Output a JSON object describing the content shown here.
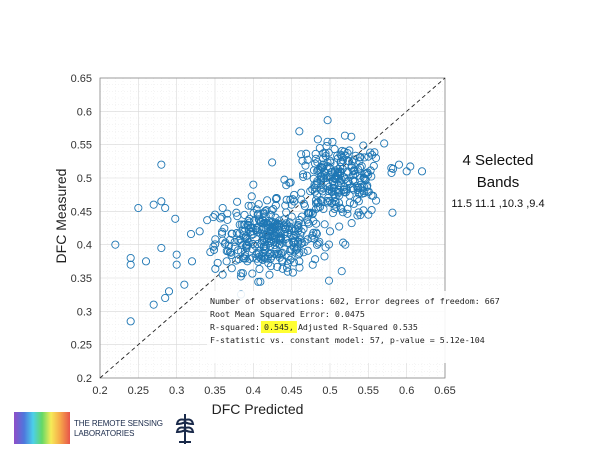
{
  "chart_data": {
    "type": "scatter",
    "xlabel": "DFC Predicted",
    "ylabel": "DFC Measured",
    "xlim": [
      0.2,
      0.65
    ],
    "ylim": [
      0.2,
      0.65
    ],
    "x_ticks": [
      "0.2",
      "0.25",
      "0.3",
      "0.35",
      "0.4",
      "0.45",
      "0.5",
      "0.55",
      "0.6",
      "0.65"
    ],
    "y_ticks": [
      "0.2",
      "0.25",
      "0.3",
      "0.35",
      "0.4",
      "0.45",
      "0.5",
      "0.55",
      "0.6",
      "0.65"
    ],
    "grid": true,
    "identity_line": true,
    "marker_color": "#1f77b4",
    "highlight_color": "#ffff33",
    "clusters": [
      {
        "center": [
          0.42,
          0.41
        ],
        "spread": [
          0.035,
          0.025
        ],
        "count": 330
      },
      {
        "center": [
          0.51,
          0.495
        ],
        "spread": [
          0.03,
          0.028
        ],
        "count": 260
      }
    ],
    "points": [
      [
        0.22,
        0.4
      ],
      [
        0.24,
        0.38
      ],
      [
        0.24,
        0.37
      ],
      [
        0.25,
        0.455
      ],
      [
        0.24,
        0.285
      ],
      [
        0.26,
        0.375
      ],
      [
        0.27,
        0.46
      ],
      [
        0.28,
        0.52
      ],
      [
        0.28,
        0.465
      ],
      [
        0.285,
        0.455
      ],
      [
        0.28,
        0.395
      ],
      [
        0.285,
        0.32
      ],
      [
        0.29,
        0.33
      ],
      [
        0.3,
        0.37
      ],
      [
        0.3,
        0.385
      ],
      [
        0.31,
        0.34
      ],
      [
        0.32,
        0.375
      ],
      [
        0.33,
        0.42
      ],
      [
        0.35,
        0.445
      ],
      [
        0.36,
        0.455
      ],
      [
        0.43,
        0.47
      ],
      [
        0.4,
        0.49
      ],
      [
        0.46,
        0.57
      ],
      [
        0.58,
        0.515
      ],
      [
        0.6,
        0.51
      ],
      [
        0.62,
        0.51
      ],
      [
        0.55,
        0.445
      ],
      [
        0.46,
        0.375
      ],
      [
        0.36,
        0.355
      ],
      [
        0.52,
        0.4
      ],
      [
        0.5,
        0.42
      ],
      [
        0.45,
        0.46
      ],
      [
        0.59,
        0.52
      ],
      [
        0.56,
        0.53
      ],
      [
        0.27,
        0.31
      ]
    ],
    "stats_lines": [
      "Number of observations: 602, Error degrees of freedom: 667",
      "Root Mean Squared Error: 0.0475",
      "R-squared: ",
      "0.545,",
      "  Adjusted R-Squared 0.535",
      "F-statistic vs. constant model: 57, p-value = 5.12e-104"
    ]
  },
  "annotation": {
    "title_line1": "4  Selected",
    "title_line2": "Bands",
    "bands": "11.5 11.1 ,10.3 ,9.4"
  },
  "logo": {
    "line1": "The Remote Sensing",
    "line2": "Laboratories"
  }
}
